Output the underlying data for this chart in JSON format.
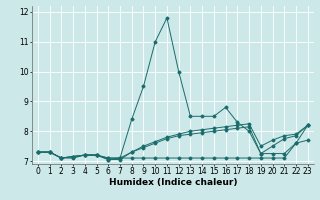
{
  "title": "",
  "xlabel": "Humidex (Indice chaleur)",
  "ylabel": "",
  "xlim": [
    -0.5,
    23.5
  ],
  "ylim": [
    6.9,
    12.2
  ],
  "yticks": [
    7,
    8,
    9,
    10,
    11,
    12
  ],
  "xticks": [
    0,
    1,
    2,
    3,
    4,
    5,
    6,
    7,
    8,
    9,
    10,
    11,
    12,
    13,
    14,
    15,
    16,
    17,
    18,
    19,
    20,
    21,
    22,
    23
  ],
  "bg_color": "#cce8e8",
  "grid_color": "#ffffff",
  "line_color": "#1a6b6b",
  "lines": [
    {
      "x": [
        0,
        1,
        2,
        3,
        4,
        5,
        6,
        7,
        8,
        9,
        10,
        11,
        12,
        13,
        14,
        15,
        16,
        17,
        18,
        19,
        20,
        21,
        22,
        23
      ],
      "y": [
        7.3,
        7.3,
        7.1,
        7.1,
        7.2,
        7.2,
        7.1,
        7.1,
        8.4,
        9.5,
        11.0,
        11.8,
        10.0,
        8.5,
        8.5,
        8.5,
        8.8,
        8.3,
        8.0,
        7.25,
        7.25,
        7.25,
        7.6,
        8.2
      ]
    },
    {
      "x": [
        0,
        1,
        2,
        3,
        4,
        5,
        6,
        7,
        8,
        9,
        10,
        11,
        12,
        13,
        14,
        15,
        16,
        17,
        18,
        19,
        20,
        21,
        22,
        23
      ],
      "y": [
        7.3,
        7.3,
        7.1,
        7.15,
        7.2,
        7.2,
        7.05,
        7.05,
        7.3,
        7.45,
        7.6,
        7.75,
        7.85,
        7.9,
        7.95,
        8.0,
        8.05,
        8.1,
        8.15,
        7.25,
        7.5,
        7.75,
        7.85,
        8.2
      ]
    },
    {
      "x": [
        0,
        1,
        2,
        3,
        4,
        5,
        6,
        7,
        8,
        9,
        10,
        11,
        12,
        13,
        14,
        15,
        16,
        17,
        18,
        19,
        20,
        21,
        22,
        23
      ],
      "y": [
        7.3,
        7.3,
        7.1,
        7.15,
        7.2,
        7.2,
        7.05,
        7.1,
        7.3,
        7.5,
        7.65,
        7.8,
        7.9,
        8.0,
        8.05,
        8.1,
        8.15,
        8.2,
        8.25,
        7.5,
        7.7,
        7.85,
        7.9,
        8.2
      ]
    },
    {
      "x": [
        0,
        1,
        2,
        3,
        4,
        5,
        6,
        7,
        8,
        9,
        10,
        11,
        12,
        13,
        14,
        15,
        16,
        17,
        18,
        19,
        20,
        21,
        22,
        23
      ],
      "y": [
        7.3,
        7.3,
        7.1,
        7.15,
        7.2,
        7.2,
        7.1,
        7.1,
        7.1,
        7.1,
        7.1,
        7.1,
        7.1,
        7.1,
        7.1,
        7.1,
        7.1,
        7.1,
        7.1,
        7.1,
        7.1,
        7.1,
        7.6,
        7.7
      ]
    }
  ],
  "marker": "D",
  "markersize": 1.5,
  "linewidth": 0.7,
  "xlabel_fontsize": 6.5,
  "tick_fontsize": 5.5
}
